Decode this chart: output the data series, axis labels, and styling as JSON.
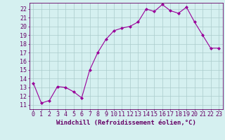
{
  "x": [
    0,
    1,
    2,
    3,
    4,
    5,
    6,
    7,
    8,
    9,
    10,
    11,
    12,
    13,
    14,
    15,
    16,
    17,
    18,
    19,
    20,
    21,
    22,
    23
  ],
  "y": [
    13.5,
    11.2,
    11.5,
    13.1,
    13.0,
    12.5,
    11.8,
    15.0,
    17.0,
    18.5,
    19.5,
    19.8,
    20.0,
    20.5,
    22.0,
    21.7,
    22.5,
    21.8,
    21.5,
    22.2,
    20.5,
    19.0,
    17.5,
    17.5
  ],
  "line_color": "#990099",
  "marker": "D",
  "marker_size": 2,
  "bg_color": "#d5f0f0",
  "grid_color": "#aacccc",
  "tick_color": "#660066",
  "xlabel": "Windchill (Refroidissement éolien,°C)",
  "xlim": [
    -0.5,
    23.5
  ],
  "ylim": [
    10.5,
    22.7
  ],
  "yticks": [
    11,
    12,
    13,
    14,
    15,
    16,
    17,
    18,
    19,
    20,
    21,
    22
  ],
  "xticks": [
    0,
    1,
    2,
    3,
    4,
    5,
    6,
    7,
    8,
    9,
    10,
    11,
    12,
    13,
    14,
    15,
    16,
    17,
    18,
    19,
    20,
    21,
    22,
    23
  ],
  "label_fontsize": 6.5,
  "tick_fontsize": 6.0
}
